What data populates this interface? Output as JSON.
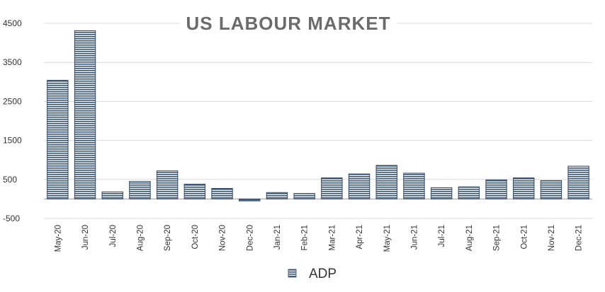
{
  "chart_data": {
    "type": "bar",
    "title": "US LABOUR MARKET",
    "xlabel": "",
    "ylabel": "",
    "categories": [
      "May-20",
      "Jun-20",
      "Jul-20",
      "Aug-20",
      "Sep-20",
      "Oct-20",
      "Nov-20",
      "Dec-20",
      "Jan-21",
      "Feb-21",
      "Mar-21",
      "Apr-21",
      "May-21",
      "Jun-21",
      "Jul-21",
      "Aug-21",
      "Sep-21",
      "Oct-21",
      "Nov-21",
      "Dec-21"
    ],
    "series": [
      {
        "name": "ADP",
        "values": [
          3040,
          4310,
          180,
          450,
          720,
          380,
          270,
          -50,
          165,
          140,
          540,
          640,
          860,
          660,
          290,
          310,
          490,
          540,
          470,
          840
        ]
      }
    ],
    "ylim": [
      -500,
      4500
    ],
    "yticks": [
      4500,
      3500,
      2500,
      1500,
      500,
      -500
    ],
    "grid": true,
    "legend": "bottom",
    "colors": {
      "bar_fill": "#f2f4f7",
      "bar_stripe": "#3e5877",
      "bar_outline": "#2f4866",
      "title": "#6b6b6b",
      "grid": "#d9d9d9",
      "axis_text": "#333333"
    }
  }
}
